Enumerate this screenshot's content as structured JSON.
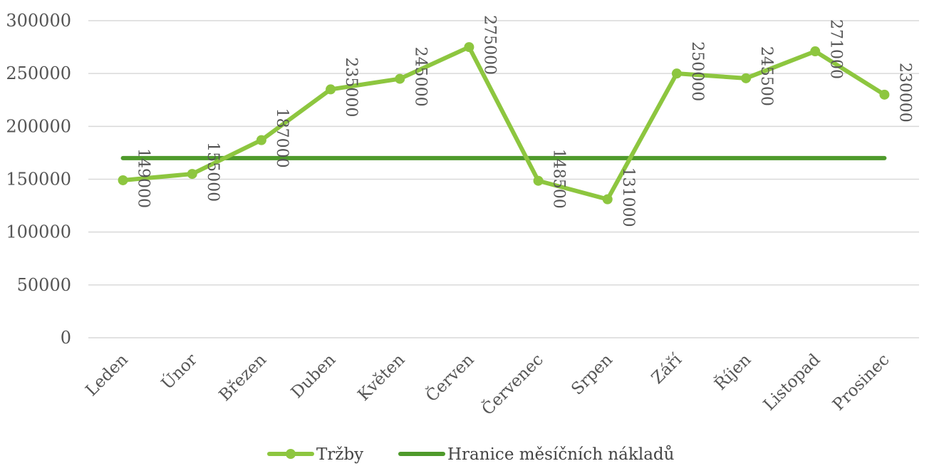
{
  "chart_data": {
    "type": "line",
    "title": "",
    "xlabel": "",
    "ylabel": "",
    "categories": [
      "Leden",
      "Únor",
      "Březen",
      "Duben",
      "Květen",
      "Červen",
      "Červenec",
      "Srpen",
      "Září",
      "Říjen",
      "Listopad",
      "Prosinec"
    ],
    "ylim": [
      0,
      300000
    ],
    "yticks": [
      0,
      50000,
      100000,
      150000,
      200000,
      250000,
      300000
    ],
    "ytick_labels": [
      "0",
      "50000",
      "100000",
      "150000",
      "200000",
      "250000",
      "300000"
    ],
    "grid": true,
    "legend_position": "bottom",
    "series": [
      {
        "name": "Tržby",
        "color": "#8dc63f",
        "markers": true,
        "values": [
          149000,
          155000,
          187000,
          235000,
          245000,
          275000,
          148500,
          131000,
          250000,
          245500,
          271000,
          230000
        ],
        "value_labels": [
          "149000",
          "155000",
          "187000",
          "235000",
          "245000",
          "275000",
          "148500",
          "131000",
          "250000",
          "245500",
          "271000",
          "230000"
        ]
      },
      {
        "name": "Hranice měsíčních nákladů",
        "color": "#4e9a2b",
        "markers": false,
        "values": [
          170000,
          170000,
          170000,
          170000,
          170000,
          170000,
          170000,
          170000,
          170000,
          170000,
          170000,
          170000
        ]
      }
    ]
  }
}
